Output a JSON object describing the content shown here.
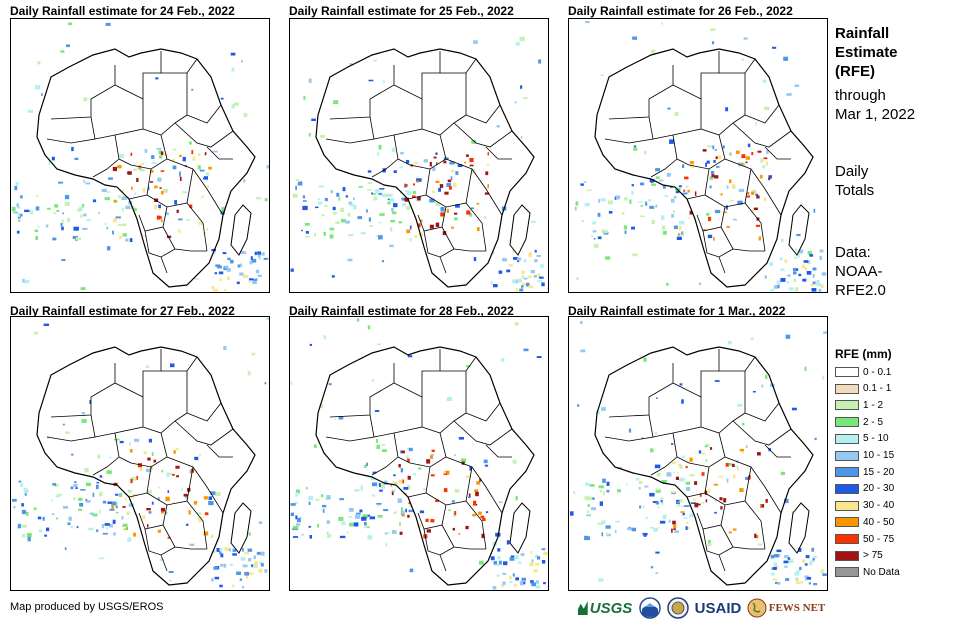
{
  "panels": [
    {
      "title": "Daily Rainfall estimate for 24 Feb., 2022"
    },
    {
      "title": "Daily Rainfall estimate for 25 Feb., 2022"
    },
    {
      "title": "Daily Rainfall estimate for 26 Feb., 2022"
    },
    {
      "title": "Daily Rainfall estimate for 27 Feb., 2022"
    },
    {
      "title": "Daily Rainfall estimate for 28 Feb., 2022"
    },
    {
      "title": "Daily Rainfall estimate for 1 Mar., 2022"
    }
  ],
  "sidebar": {
    "title_line1": "Rainfall",
    "title_line2": "Estimate",
    "title_line3": "(RFE)",
    "through_label": "through",
    "date": "Mar 1, 2022",
    "totals_line1": "Daily",
    "totals_line2": "Totals",
    "data_line1": "Data:",
    "data_line2": "NOAA-",
    "data_line3": "RFE2.0"
  },
  "legend": {
    "title": "RFE (mm)",
    "items": [
      {
        "label": "0 - 0.1",
        "color": "#ffffff"
      },
      {
        "label": "0.1 - 1",
        "color": "#f2dcc0"
      },
      {
        "label": "1 - 2",
        "color": "#c8f0b4"
      },
      {
        "label": "2 - 5",
        "color": "#78e678"
      },
      {
        "label": "5 - 10",
        "color": "#b4f0f0"
      },
      {
        "label": "10 - 15",
        "color": "#96c8f0"
      },
      {
        "label": "15 - 20",
        "color": "#5096e6"
      },
      {
        "label": "20 - 30",
        "color": "#1e5ae6"
      },
      {
        "label": "30 - 40",
        "color": "#fae68c"
      },
      {
        "label": "40 - 50",
        "color": "#fa9600"
      },
      {
        "label": "50 - 75",
        "color": "#fa3200"
      },
      {
        "label": "> 75",
        "color": "#a01414"
      },
      {
        "label": "No Data",
        "color": "#969696"
      }
    ]
  },
  "credit": "Map produced by USGS/EROS",
  "logos": {
    "usgs": "USGS",
    "noaa": "NOAA",
    "usaid": "USAID",
    "fewsnet": "FEWS NET"
  }
}
